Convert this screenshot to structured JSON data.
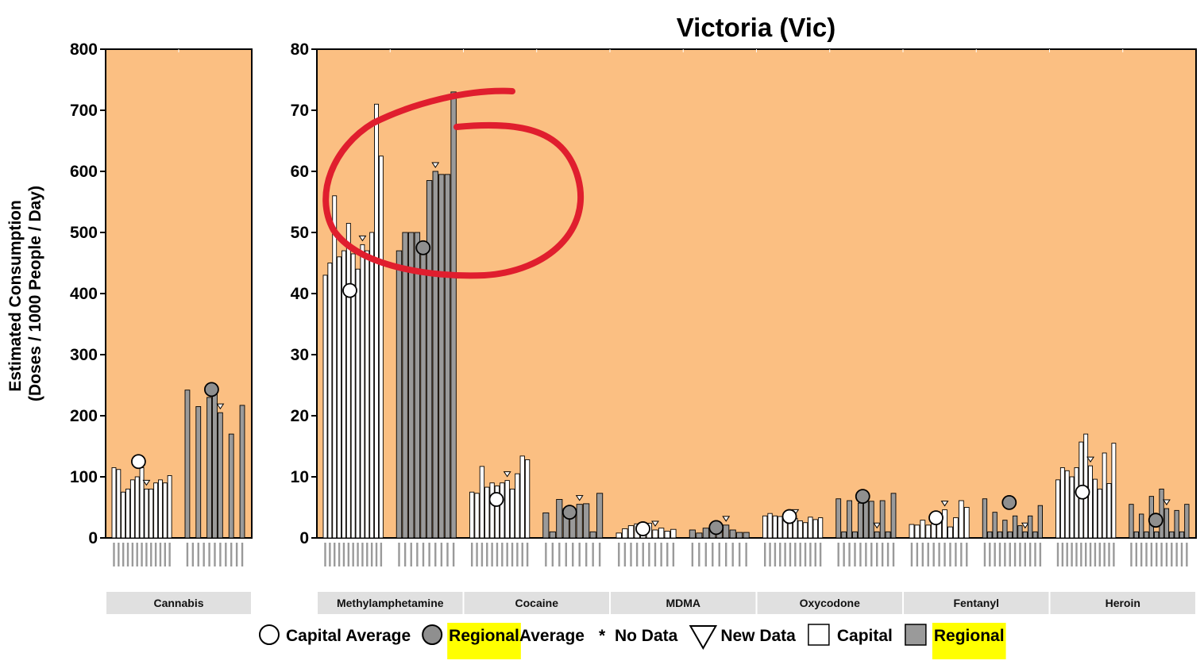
{
  "chart_data": {
    "type": "bar",
    "title": "Victoria (Vic)",
    "ylabel_lines": [
      "Estimated Consumption",
      "(Doses / 1000 People / Day)"
    ],
    "left_panel": {
      "ylim": [
        0,
        800
      ],
      "ticks": [
        "0",
        "100",
        "200",
        "300",
        "400",
        "500",
        "600",
        "700",
        "800"
      ]
    },
    "right_panel": {
      "ylim": [
        0,
        80
      ],
      "ticks": [
        "0",
        "10",
        "20",
        "30",
        "40",
        "50",
        "60",
        "70",
        "80"
      ]
    },
    "colors": {
      "background": "#fbbf82",
      "capital": "#ffffff",
      "regional": "#9a9a9a",
      "annotation": "#e01e2e",
      "highlight": "#ffff00",
      "strip": "#e0e0e0"
    },
    "drugs": [
      {
        "name": "Cannabis",
        "panel": "left",
        "capital": [
          115,
          112,
          75,
          80,
          95,
          100,
          115,
          80,
          80,
          90,
          95,
          90,
          102
        ],
        "capital_avg": 125,
        "capital_new_data_index": 7,
        "regional": [
          242,
          0,
          215,
          0,
          230,
          240,
          205,
          0,
          170,
          0,
          217
        ],
        "regional_avg": 243,
        "regional_new_data_index": 6
      },
      {
        "name": "Methylamphetamine",
        "panel": "right",
        "capital": [
          43,
          45,
          56,
          46,
          47,
          51.5,
          46.5,
          44,
          48,
          47,
          50,
          71,
          62.5
        ],
        "capital_avg": 40.5,
        "capital_new_data_index": 8,
        "regional": [
          47,
          50,
          50,
          50,
          47.5,
          58.5,
          60,
          59.5,
          59.5,
          73
        ],
        "regional_avg": 47.5,
        "regional_new_data_index": 6
      },
      {
        "name": "Cocaine",
        "panel": "right",
        "capital": [
          7.5,
          7.3,
          11.7,
          8.3,
          9,
          8.5,
          9,
          9.4,
          8,
          10.5,
          13.4,
          12.8
        ],
        "capital_avg": 6.3,
        "capital_new_data_index": 7,
        "regional": [
          4.1,
          1,
          6.3,
          4.8,
          4.8,
          5.5,
          5.6,
          1,
          7.3
        ],
        "regional_avg": 4.2,
        "regional_new_data_index": 5
      },
      {
        "name": "MDMA",
        "panel": "right",
        "capital": [
          0.8,
          1.5,
          2,
          2.3,
          1.5,
          2.4,
          1.3,
          1.6,
          1.1,
          1.4
        ],
        "capital_avg": 1.5,
        "capital_new_data_index": 6,
        "regional": [
          1.3,
          0.8,
          1.6,
          1.2,
          1.5,
          2.1,
          1.3,
          0.9,
          0.9
        ],
        "regional_avg": 1.7,
        "regional_new_data_index": 5
      },
      {
        "name": "Oxycodone",
        "panel": "right",
        "capital": [
          3.6,
          4,
          3.6,
          3.5,
          3.9,
          3.5,
          3.2,
          2.8,
          2.5,
          3.4,
          3,
          3.3
        ],
        "capital_avg": 3.5,
        "capital_new_data_index": 6,
        "regional": [
          6.4,
          1,
          6.1,
          1,
          5.7,
          6.4,
          6,
          1,
          6.1,
          1,
          7.3
        ],
        "regional_avg": 6.8,
        "regional_new_data_index": 7
      },
      {
        "name": "Fentanyl",
        "panel": "right",
        "capital": [
          2.2,
          2.1,
          2.9,
          2.1,
          2.5,
          2.8,
          4.6,
          1.8,
          3.3,
          6.1,
          5
        ],
        "capital_avg": 3.3,
        "capital_new_data_index": 6,
        "regional": [
          6.4,
          1,
          4.2,
          1,
          2.9,
          1,
          3.6,
          2,
          1,
          3.6,
          1,
          5.3
        ],
        "regional_avg": 5.8,
        "regional_new_data_index": 8
      },
      {
        "name": "Heroin",
        "panel": "right",
        "capital": [
          9.5,
          11.5,
          11,
          10,
          11.5,
          15.7,
          17,
          11.8,
          9.6,
          8,
          13.9,
          8.9,
          15.5
        ],
        "capital_avg": 7.5,
        "capital_new_data_index": 7,
        "regional": [
          5.5,
          1,
          3.9,
          1,
          6.8,
          1,
          8,
          4.8,
          1,
          4.5,
          1,
          5.5
        ],
        "regional_avg": 2.9,
        "regional_new_data_index": 7
      }
    ],
    "legend": [
      {
        "symbol": "open-circle",
        "parts": [
          "Capital Average"
        ]
      },
      {
        "symbol": "grey-circle",
        "parts": [
          "Regional",
          " Average"
        ],
        "highlight_part": 0
      },
      {
        "symbol": "star",
        "parts": [
          "No Data"
        ]
      },
      {
        "symbol": "triangle",
        "parts": [
          "New Data"
        ]
      },
      {
        "symbol": "white-square",
        "parts": [
          "Capital"
        ]
      },
      {
        "symbol": "grey-square",
        "parts": [
          "Regional"
        ],
        "highlight_part": 0
      }
    ]
  }
}
